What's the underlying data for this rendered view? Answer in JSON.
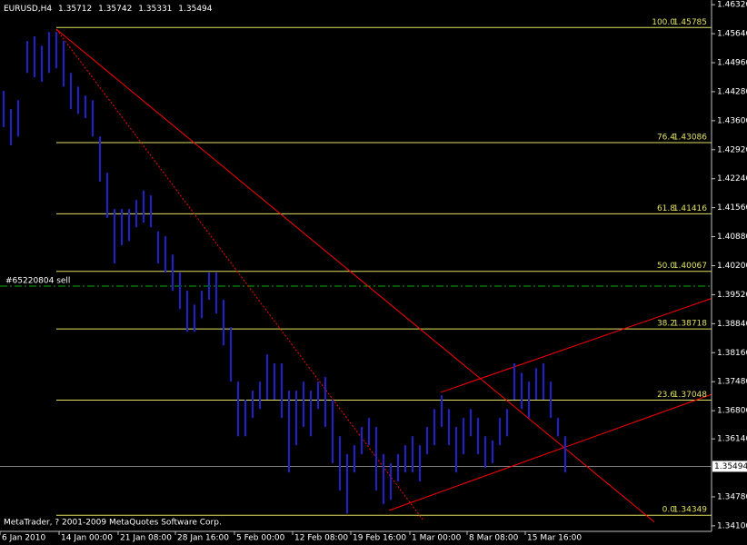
{
  "chart_data": {
    "type": "hlbar",
    "symbol": "EURUSD,H4",
    "ohlc": [
      1.35712,
      1.35742,
      1.35331,
      1.35494
    ],
    "copyright": "MetaTrader, ? 2001-2009 MetaQuotes Software Corp.",
    "background": "#000000",
    "xlim": [
      0,
      391.5
    ],
    "ylim": [
      1.3397,
      1.4643
    ],
    "xticks": [
      {
        "value": 0,
        "label": "6 Jan 2010"
      },
      {
        "value": 32.5,
        "label": "14 Jan 00:00"
      },
      {
        "value": 65,
        "label": "21 Jan 08:00"
      },
      {
        "value": 96.5,
        "label": "28 Jan 16:00"
      },
      {
        "value": 129,
        "label": "5 Feb 00:00"
      },
      {
        "value": 161,
        "label": "12 Feb 08:00"
      },
      {
        "value": 193,
        "label": "19 Feb 16:00"
      },
      {
        "value": 225.5,
        "label": "1 Mar 00:00"
      },
      {
        "value": 257,
        "label": "8 Mar 08:00"
      },
      {
        "value": 289,
        "label": "15 Mar 16:00"
      }
    ],
    "yticks": [
      {
        "value": 1.4632,
        "label": "1.46320"
      },
      {
        "value": 1.4564,
        "label": "1.45640"
      },
      {
        "value": 1.4496,
        "label": "1.44960"
      },
      {
        "value": 1.4428,
        "label": "1.44280"
      },
      {
        "value": 1.436,
        "label": "1.43600"
      },
      {
        "value": 1.4292,
        "label": "1.42920"
      },
      {
        "value": 1.4224,
        "label": "1.42240"
      },
      {
        "value": 1.4156,
        "label": "1.41560"
      },
      {
        "value": 1.4088,
        "label": "1.40880"
      },
      {
        "value": 1.402,
        "label": "1.40200"
      },
      {
        "value": 1.3952,
        "label": "1.39520"
      },
      {
        "value": 1.3884,
        "label": "1.38840"
      },
      {
        "value": 1.3816,
        "label": "1.38160"
      },
      {
        "value": 1.3748,
        "label": "1.37480"
      },
      {
        "value": 1.368,
        "label": "1.36800"
      },
      {
        "value": 1.3614,
        "label": "1.36140"
      },
      {
        "value": 1.3478,
        "label": "1.34780"
      },
      {
        "value": 1.341,
        "label": "1.34100"
      }
    ],
    "bid": 1.35494,
    "series": [
      {
        "color": "#2020d0",
        "x": [
          2,
          6,
          10,
          15,
          19,
          23,
          27,
          31,
          35,
          39,
          43,
          47,
          51,
          55,
          59,
          63,
          67,
          71,
          75,
          79,
          83,
          87,
          91,
          95,
          99,
          103,
          107,
          111,
          115,
          119,
          123,
          127,
          131,
          135,
          139,
          143,
          147,
          151,
          155,
          159,
          163,
          167,
          171,
          175,
          179,
          183,
          187,
          191,
          195,
          199,
          203,
          207,
          211,
          215,
          219,
          223,
          227,
          231,
          235,
          239,
          243,
          247,
          251,
          255,
          259,
          263,
          267,
          271,
          275,
          279,
          283,
          287,
          291,
          295,
          299,
          303,
          307,
          311
        ],
        "high": [
          1.443,
          1.4387,
          1.4408,
          1.4547,
          1.4558,
          1.4536,
          1.4568,
          1.4568,
          1.4547,
          1.4472,
          1.444,
          1.4419,
          1.4408,
          1.4323,
          1.4238,
          1.4153,
          1.4153,
          1.4153,
          1.4174,
          1.4196,
          1.4185,
          1.41,
          1.4089,
          1.4046,
          1.4004,
          1.3961,
          1.3929,
          1.3961,
          1.4004,
          1.4004,
          1.394,
          1.3876,
          1.3748,
          1.3706,
          1.3727,
          1.3748,
          1.3812,
          1.3791,
          1.3791,
          1.3727,
          1.3727,
          1.3748,
          1.3727,
          1.3748,
          1.3759,
          1.3706,
          1.362,
          1.3578,
          1.3599,
          1.3642,
          1.3663,
          1.3642,
          1.3578,
          1.3557,
          1.3578,
          1.3599,
          1.362,
          1.3599,
          1.3642,
          1.3684,
          1.3716,
          1.3684,
          1.3642,
          1.3663,
          1.3684,
          1.3663,
          1.362,
          1.361,
          1.3663,
          1.3684,
          1.3791,
          1.3769,
          1.3748,
          1.378,
          1.3791,
          1.3748,
          1.3663,
          1.362
        ],
        "low": [
          1.4345,
          1.4302,
          1.4323,
          1.4472,
          1.4462,
          1.4451,
          1.4472,
          1.4483,
          1.444,
          1.4387,
          1.4376,
          1.4366,
          1.4323,
          1.4217,
          1.4132,
          1.4025,
          1.4068,
          1.4078,
          1.411,
          1.4121,
          1.411,
          1.4025,
          1.4004,
          1.3961,
          1.3918,
          1.3865,
          1.3865,
          1.3897,
          1.394,
          1.3908,
          1.3833,
          1.3748,
          1.362,
          1.362,
          1.3663,
          1.3684,
          1.3706,
          1.3706,
          1.3663,
          1.3535,
          1.3599,
          1.3642,
          1.362,
          1.3684,
          1.3642,
          1.3557,
          1.3493,
          1.3439,
          1.3535,
          1.3578,
          1.3599,
          1.3493,
          1.3461,
          1.3471,
          1.3514,
          1.3535,
          1.3535,
          1.3514,
          1.3578,
          1.3599,
          1.3642,
          1.3599,
          1.3535,
          1.3578,
          1.362,
          1.3578,
          1.3546,
          1.3557,
          1.3599,
          1.362,
          1.3706,
          1.3684,
          1.3663,
          1.3706,
          1.3706,
          1.3663,
          1.362,
          1.3535
        ]
      }
    ],
    "fib_color": "#e0e060",
    "fib_levels": [
      {
        "ratio": "100.0",
        "value": 1.45785
      },
      {
        "ratio": "76.4",
        "value": 1.43086
      },
      {
        "ratio": "61.8",
        "value": 1.41416
      },
      {
        "ratio": "50.0",
        "value": 1.40067
      },
      {
        "ratio": "38.2",
        "value": 1.38718
      },
      {
        "ratio": "23.6",
        "value": 1.37048
      },
      {
        "ratio": "0.0",
        "value": 1.34349
      }
    ],
    "order": {
      "label": "#65220804 sell",
      "value": 1.3972,
      "color": "#00b000"
    },
    "trendlines": [
      {
        "color": "#ff0000",
        "dashed": false,
        "x": [
          31,
          360
        ],
        "y": [
          1.45745,
          1.3419
        ]
      },
      {
        "color": "#ff0000",
        "dashed": true,
        "x": [
          31,
          232.5
        ],
        "y": [
          1.45745,
          1.3425
        ]
      },
      {
        "color": "#ff0000",
        "dashed": false,
        "x": [
          242.5,
          411
        ],
        "y": [
          1.3723,
          1.3972
        ]
      },
      {
        "color": "#ff0000",
        "dashed": false,
        "x": [
          214,
          411
        ],
        "y": [
          1.3446,
          1.3748
        ]
      }
    ]
  }
}
